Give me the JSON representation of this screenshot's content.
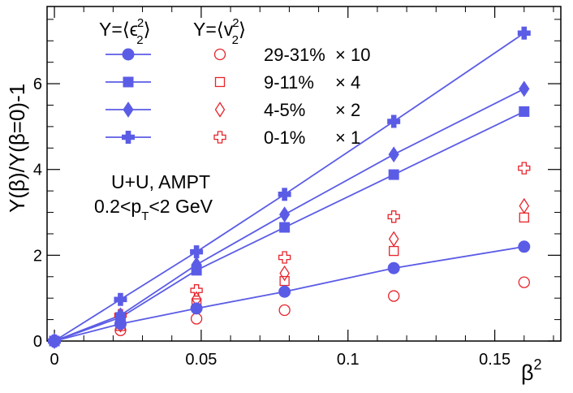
{
  "chart_data": {
    "type": "scatter",
    "xlabel": "β",
    "xlabel_sup": "2",
    "ylabel": "Y(β)/Y(β=0)-1",
    "xlim": [
      -0.0025,
      0.1725
    ],
    "ylim": [
      0,
      7.8
    ],
    "x_ticks": [
      0,
      0.05,
      0.1,
      0.15
    ],
    "x_tick_labels": [
      "0",
      "0.05",
      "0.1",
      "0.15"
    ],
    "y_ticks": [
      0,
      2,
      4,
      6
    ],
    "y_tick_labels": [
      "0",
      "2",
      "4",
      "6"
    ],
    "legend": {
      "header_eps": "Y=⟨ϵ",
      "header_v": "Y=⟨v",
      "header_sup": "2",
      "header_sub": "2",
      "header_close": "⟩",
      "entries": [
        {
          "label": "29-31%",
          "factor": "× 10"
        },
        {
          "label": "9-11%",
          "factor": "× 4"
        },
        {
          "label": "4-5%",
          "factor": "× 2"
        },
        {
          "label": "0-1%",
          "factor": "× 1"
        }
      ]
    },
    "annotation": {
      "line1": "U+U, AMPT",
      "line2_pre": "0.2<p",
      "line2_sub": "T",
      "line2_post": "<2 GeV"
    },
    "colors": {
      "eps": "#5b5ce6",
      "v": "#e8232a"
    },
    "x": [
      0,
      0.0225,
      0.0484,
      0.0784,
      0.1156,
      0.16
    ],
    "series_eps": [
      {
        "name": "29-31%",
        "marker": "circle",
        "values": [
          0,
          0.4,
          0.76,
          1.15,
          1.7,
          2.2
        ]
      },
      {
        "name": "9-11%",
        "marker": "square",
        "values": [
          0,
          0.55,
          1.65,
          2.65,
          3.88,
          5.35
        ]
      },
      {
        "name": "4-5%",
        "marker": "diamond",
        "values": [
          0,
          0.6,
          1.78,
          2.95,
          4.35,
          5.88
        ]
      },
      {
        "name": "0-1%",
        "marker": "cross",
        "values": [
          0,
          0.97,
          2.08,
          3.42,
          5.12,
          7.18
        ]
      }
    ],
    "series_v": [
      {
        "name": "29-31%",
        "marker": "circle",
        "values": [
          0,
          0.25,
          0.52,
          0.72,
          1.05,
          1.37
        ]
      },
      {
        "name": "9-11%",
        "marker": "square",
        "values": [
          0,
          0.35,
          0.88,
          1.4,
          2.1,
          2.88
        ]
      },
      {
        "name": "4-5%",
        "marker": "diamond",
        "values": [
          0,
          0.38,
          0.98,
          1.58,
          2.38,
          3.15
        ]
      },
      {
        "name": "0-1%",
        "marker": "cross",
        "values": [
          0,
          0.6,
          1.18,
          1.95,
          2.9,
          4.03
        ]
      }
    ]
  }
}
